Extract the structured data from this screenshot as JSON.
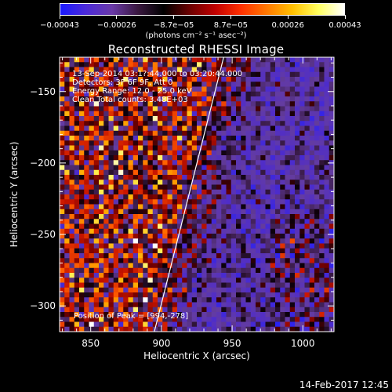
{
  "colorbar": {
    "tick_labels": [
      "−0.00043",
      "−0.00026",
      "−8.7e−05",
      "8.7e−05",
      "0.00026",
      "0.00043"
    ],
    "units": "(photons cm⁻² s⁻¹ asec⁻²)"
  },
  "title": "Reconstructed RHESSI Image",
  "annotations": {
    "time": "13-Sep-2014 03:1?:44.000 to 03:20:44.000",
    "detectors": "Detectors: 3F 6F 9F, Att 0",
    "energy": "Energy Range: 12.0 - 25.0 keV",
    "clean": "Clean    Total counts: 3.48E+03",
    "peak": "Position of Peak = [994,-278]"
  },
  "chart_data": {
    "type": "heatmap",
    "title": "Reconstructed RHESSI Image",
    "xlabel": "Heliocentric X (arcsec)",
    "ylabel": "Heliocentric Y (arcsec)",
    "xlim": [
      828,
      1022
    ],
    "ylim": [
      -318,
      -126
    ],
    "x_ticks": [
      850,
      900,
      950,
      1000
    ],
    "y_ticks": [
      -150,
      -200,
      -250,
      -300
    ],
    "x_tick_labels": [
      "850",
      "900",
      "950",
      "1000"
    ],
    "y_tick_labels": [
      "−150",
      "−200",
      "−250",
      "−300"
    ],
    "color_range": [
      -0.00043,
      0.00043
    ],
    "colormap": "blue-purple-black-red-orange-yellow-white",
    "limb_line": {
      "x": [
        895,
        944
      ],
      "y": [
        -318,
        -126
      ]
    },
    "peak": {
      "x": 994,
      "y": -278
    }
  },
  "footer": {
    "timestamp": "14-Feb-2017 12:45"
  }
}
